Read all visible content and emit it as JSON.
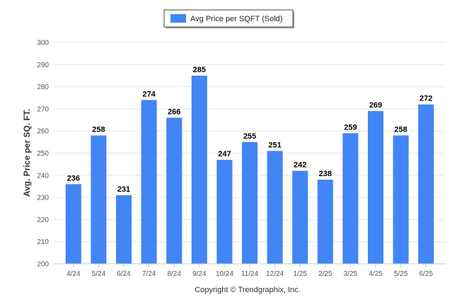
{
  "chart_data": {
    "type": "bar",
    "categories": [
      "4/24",
      "5/24",
      "6/24",
      "7/24",
      "8/24",
      "9/24",
      "10/24",
      "11/24",
      "12/24",
      "1/25",
      "2/25",
      "3/25",
      "4/25",
      "5/25",
      "6/25"
    ],
    "series": [
      {
        "name": "Avg Price per SQFT (Sold)",
        "values": [
          236,
          258,
          231,
          274,
          266,
          285,
          247,
          255,
          251,
          242,
          238,
          259,
          269,
          258,
          272
        ],
        "color": "#4285f4"
      }
    ],
    "ylabel": "Avg. Price per SQ. FT.",
    "ylim": [
      200,
      300
    ],
    "yticks": [
      200,
      210,
      220,
      230,
      240,
      250,
      260,
      270,
      280,
      290,
      300
    ],
    "grid": true,
    "legend_position": "top-center",
    "data_labels": true
  },
  "footer": {
    "copyright": "Copyright © Trendgraphix, Inc."
  }
}
